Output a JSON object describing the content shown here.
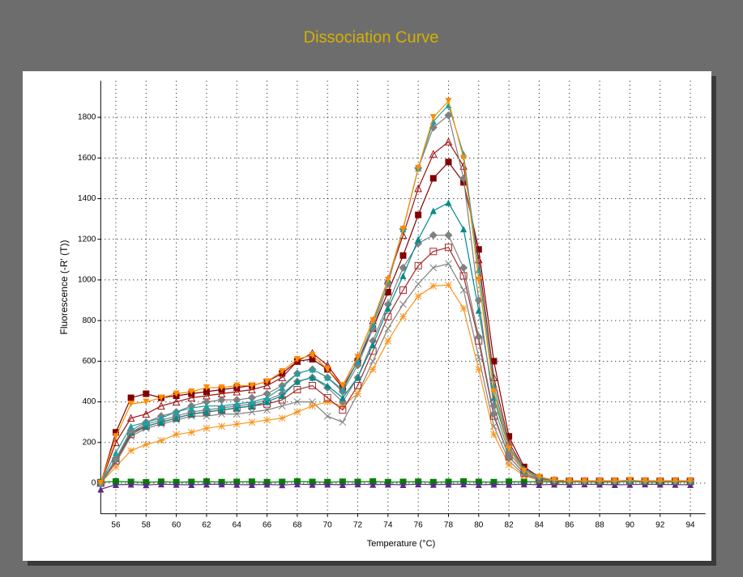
{
  "chart_data": {
    "type": "line",
    "title": "Dissociation Curve",
    "x_label": "Temperature (°C)",
    "y_label": "Fluorescence (-R' (T))",
    "xlim": [
      55,
      95
    ],
    "ylim": [
      -150,
      1980
    ],
    "xticks": [
      56,
      58,
      60,
      62,
      64,
      66,
      68,
      70,
      72,
      74,
      76,
      78,
      80,
      82,
      84,
      86,
      88,
      90,
      92,
      94
    ],
    "yticks": [
      0,
      200,
      400,
      600,
      800,
      1000,
      1200,
      1400,
      1600,
      1800
    ],
    "grid": true,
    "x": [
      55,
      56,
      57,
      58,
      59,
      60,
      61,
      62,
      63,
      64,
      65,
      66,
      67,
      68,
      69,
      70,
      71,
      72,
      73,
      74,
      75,
      76,
      77,
      78,
      79,
      80,
      81,
      82,
      83,
      84,
      85,
      86,
      87,
      88,
      89,
      90,
      91,
      92,
      93,
      94
    ],
    "series": [
      {
        "color": "#008000",
        "marker": "square",
        "values": [
          5,
          8,
          6,
          4,
          7,
          5,
          6,
          8,
          5,
          6,
          7,
          5,
          6,
          8,
          6,
          5,
          7,
          6,
          8,
          5,
          6,
          7,
          5,
          6,
          8,
          6,
          5,
          7,
          6,
          8,
          5,
          6,
          7,
          5,
          6,
          8,
          6,
          5,
          7,
          6
        ]
      },
      {
        "color": "#5b2a86",
        "marker": "triangle",
        "values": [
          -30,
          -8,
          -6,
          -9,
          -5,
          -7,
          -8,
          -6,
          -5,
          -7,
          -8,
          -6,
          -9,
          -5,
          -7,
          -6,
          -8,
          -5,
          -7,
          -6,
          -8,
          -5,
          -7,
          -6,
          -5,
          -8,
          -6,
          -7,
          -5,
          -8,
          -6,
          -7,
          -5,
          -6,
          -8,
          -7,
          -5,
          -6,
          -7,
          -8
        ]
      },
      {
        "color": "#808080",
        "marker": "x",
        "values": [
          0,
          100,
          230,
          270,
          290,
          310,
          330,
          330,
          340,
          340,
          350,
          360,
          380,
          400,
          400,
          330,
          300,
          440,
          600,
          760,
          880,
          980,
          1060,
          1080,
          950,
          620,
          280,
          110,
          40,
          20,
          10,
          10,
          10,
          10,
          10,
          10,
          10,
          10,
          10,
          10
        ]
      },
      {
        "color": "#f7941d",
        "marker": "star",
        "values": [
          0,
          80,
          160,
          190,
          210,
          240,
          250,
          270,
          280,
          290,
          300,
          310,
          320,
          350,
          380,
          400,
          380,
          440,
          560,
          700,
          820,
          920,
          970,
          975,
          860,
          560,
          240,
          90,
          35,
          15,
          10,
          10,
          10,
          10,
          10,
          10,
          10,
          10,
          10,
          10
        ]
      },
      {
        "color": "#a52a2a",
        "marker": "square-open",
        "values": [
          0,
          110,
          240,
          280,
          300,
          320,
          340,
          350,
          360,
          370,
          380,
          390,
          410,
          460,
          480,
          420,
          360,
          480,
          650,
          820,
          950,
          1070,
          1140,
          1160,
          1020,
          700,
          330,
          130,
          50,
          20,
          10,
          10,
          10,
          10,
          10,
          10,
          10,
          10,
          10,
          10
        ]
      },
      {
        "color": "#808080",
        "marker": "diamond",
        "values": [
          0,
          115,
          250,
          290,
          310,
          330,
          350,
          360,
          370,
          380,
          390,
          410,
          440,
          500,
          520,
          470,
          400,
          520,
          700,
          880,
          1060,
          1180,
          1220,
          1220,
          1060,
          720,
          340,
          130,
          50,
          20,
          10,
          10,
          10,
          10,
          10,
          10,
          10,
          10,
          10,
          10
        ]
      },
      {
        "color": "#008b8b",
        "marker": "triangle",
        "values": [
          0,
          120,
          250,
          280,
          300,
          320,
          340,
          350,
          360,
          370,
          380,
          400,
          430,
          500,
          520,
          480,
          420,
          520,
          680,
          860,
          1020,
          1200,
          1340,
          1380,
          1250,
          850,
          420,
          170,
          60,
          25,
          15,
          10,
          10,
          10,
          10,
          10,
          10,
          10,
          10,
          10
        ]
      },
      {
        "color": "#800000",
        "marker": "square",
        "values": [
          0,
          250,
          420,
          440,
          420,
          430,
          440,
          450,
          460,
          470,
          480,
          500,
          540,
          600,
          610,
          560,
          470,
          600,
          760,
          940,
          1120,
          1320,
          1500,
          1580,
          1480,
          1150,
          600,
          230,
          80,
          30,
          15,
          10,
          10,
          10,
          10,
          10,
          10,
          10,
          10,
          10
        ]
      },
      {
        "color": "#a01010",
        "marker": "triangle-open",
        "values": [
          0,
          200,
          320,
          340,
          380,
          400,
          420,
          430,
          440,
          450,
          460,
          480,
          520,
          600,
          640,
          580,
          480,
          620,
          800,
          1000,
          1220,
          1450,
          1620,
          1680,
          1560,
          1100,
          520,
          200,
          70,
          30,
          15,
          10,
          10,
          10,
          10,
          10,
          10,
          10,
          10,
          10
        ]
      },
      {
        "color": "#808080",
        "marker": "diamond",
        "values": [
          0,
          120,
          260,
          300,
          330,
          350,
          380,
          400,
          410,
          410,
          420,
          440,
          480,
          540,
          560,
          520,
          450,
          580,
          760,
          980,
          1250,
          1550,
          1750,
          1810,
          1500,
          900,
          380,
          150,
          60,
          30,
          15,
          10,
          10,
          10,
          10,
          10,
          10,
          10,
          10,
          10
        ]
      },
      {
        "color": "#20a0a0",
        "marker": "triangle",
        "values": [
          0,
          150,
          280,
          300,
          320,
          350,
          370,
          380,
          380,
          390,
          400,
          420,
          470,
          540,
          560,
          520,
          460,
          600,
          780,
          1000,
          1250,
          1550,
          1780,
          1860,
          1620,
          1050,
          480,
          180,
          70,
          30,
          15,
          10,
          10,
          10,
          10,
          10,
          10,
          10,
          10,
          10
        ]
      },
      {
        "color": "#ff8c00",
        "marker": "triangle-down",
        "values": [
          0,
          230,
          390,
          400,
          420,
          440,
          450,
          470,
          470,
          480,
          480,
          500,
          550,
          610,
          630,
          560,
          480,
          620,
          800,
          1000,
          1250,
          1550,
          1800,
          1880,
          1600,
          1000,
          450,
          170,
          60,
          30,
          15,
          10,
          10,
          10,
          10,
          15,
          10,
          10,
          10,
          10
        ]
      }
    ]
  }
}
